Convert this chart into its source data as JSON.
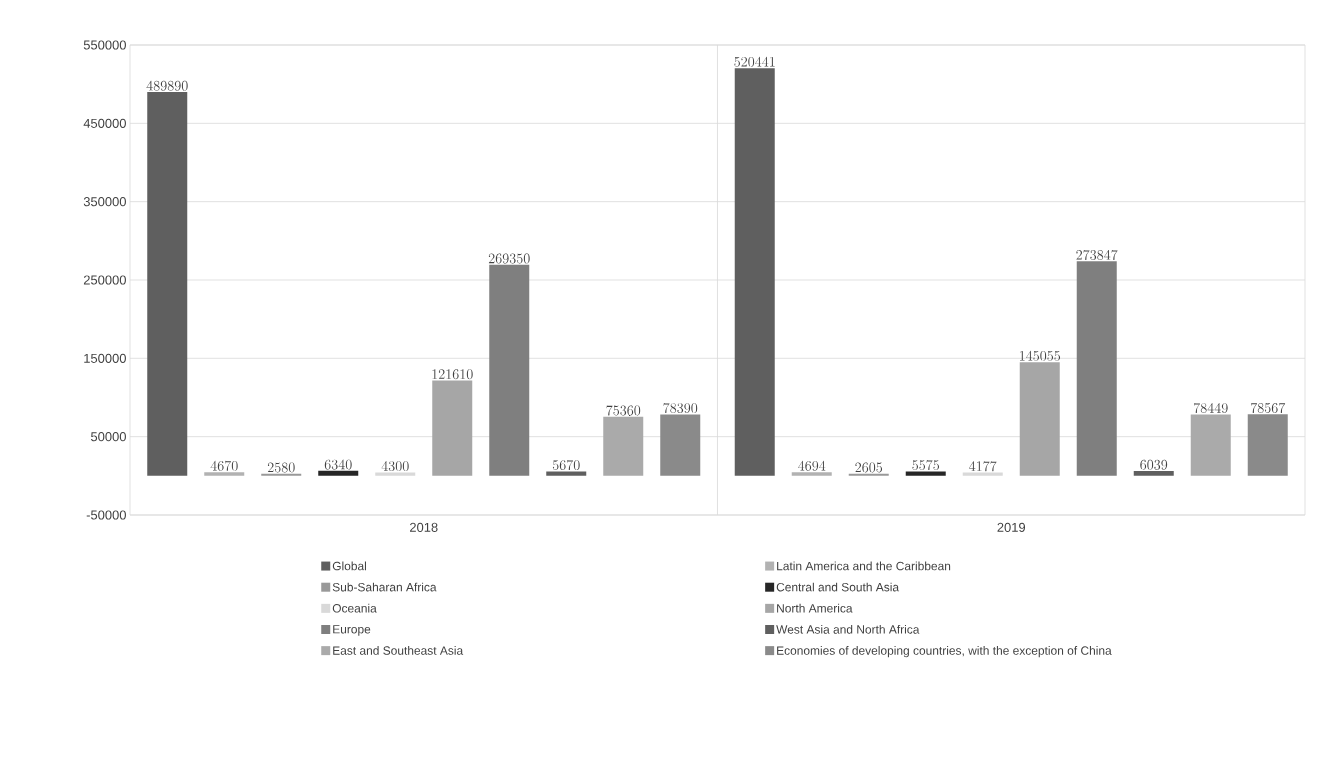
{
  "chart_data": {
    "type": "bar",
    "categories": [
      "2018",
      "2019"
    ],
    "series": [
      {
        "name": "Global",
        "color": "#5f5f5f",
        "values": [
          489890,
          520441
        ]
      },
      {
        "name": "Latin America and the Caribbean",
        "color": "#b2b2b2",
        "values": [
          4670,
          4694
        ]
      },
      {
        "name": "Sub-Saharan Africa",
        "color": "#999999",
        "values": [
          2580,
          2605
        ]
      },
      {
        "name": "Central and South Asia",
        "color": "#262626",
        "values": [
          6340,
          5575
        ]
      },
      {
        "name": "Oceania",
        "color": "#d9d9d9",
        "values": [
          4300,
          4177
        ]
      },
      {
        "name": "North America",
        "color": "#a6a6a6",
        "values": [
          121610,
          145055
        ]
      },
      {
        "name": "Europe",
        "color": "#7f7f7f",
        "values": [
          269350,
          273847
        ]
      },
      {
        "name": "West Asia and North Africa",
        "color": "#5f5f5f",
        "values": [
          5670,
          6039
        ]
      },
      {
        "name": "East and Southeast Asia",
        "color": "#aaaaaa",
        "values": [
          75360,
          78449
        ]
      },
      {
        "name": "Economies of developing countries, with the exception of China",
        "color": "#8a8a8a",
        "values": [
          78390,
          78567
        ]
      }
    ],
    "ylim": [
      -50000,
      550000
    ],
    "yticks": [
      -50000,
      50000,
      150000,
      250000,
      350000,
      450000,
      550000
    ],
    "grid": "y",
    "legend": "bottom",
    "data_labels": true
  }
}
